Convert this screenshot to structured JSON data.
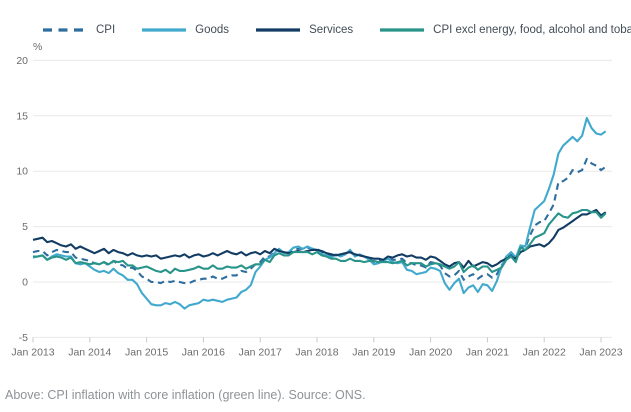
{
  "page": {
    "caption": "Above: CPI inflation with core inflation (green line). Source: ONS."
  },
  "chart_data": {
    "type": "line",
    "ylabel": "%",
    "ylim": [
      -5,
      20
    ],
    "y_ticks": [
      20,
      15,
      10,
      5,
      0,
      -5
    ],
    "x_ticks": [
      "Jan 2013",
      "Jan 2014",
      "Jan 2015",
      "Jan 2016",
      "Jan 2017",
      "Jan 2018",
      "Jan 2019",
      "Jan 2020",
      "Jan 2021",
      "Jan 2022",
      "Jan 2023"
    ],
    "x_start_month": "2013-01",
    "x_end_month": "2023-02",
    "grid": "horizontal",
    "legend_position": "top",
    "colors": {
      "grid": "#e8e8e8",
      "tick": "#c9c9c9",
      "axis_text": "#6b6b6b",
      "legend_text": "#414d56",
      "caption_text": "#8f9396"
    },
    "series": [
      {
        "name": "CPI",
        "color": "#2e6e9e",
        "dash": true,
        "values": [
          2.7,
          2.8,
          2.8,
          2.4,
          2.7,
          2.9,
          2.8,
          2.7,
          2.7,
          2.2,
          2.1,
          2.0,
          1.9,
          1.7,
          1.6,
          1.8,
          1.5,
          1.9,
          1.6,
          1.5,
          1.2,
          1.3,
          1.0,
          0.5,
          0.3,
          0.0,
          0.0,
          -0.1,
          0.1,
          0.0,
          0.1,
          0.0,
          -0.1,
          -0.1,
          0.1,
          0.2,
          0.3,
          0.3,
          0.5,
          0.3,
          0.3,
          0.5,
          0.6,
          0.6,
          1.0,
          0.9,
          1.2,
          1.6,
          1.8,
          2.3,
          2.3,
          2.7,
          2.9,
          2.6,
          2.6,
          2.9,
          3.0,
          3.0,
          3.1,
          3.0,
          3.0,
          2.7,
          2.5,
          2.4,
          2.4,
          2.4,
          2.5,
          2.7,
          2.4,
          2.4,
          2.3,
          2.1,
          1.8,
          1.9,
          1.9,
          2.1,
          2.0,
          2.0,
          2.1,
          1.7,
          1.7,
          1.5,
          1.5,
          1.3,
          1.8,
          1.7,
          1.5,
          0.8,
          0.5,
          0.6,
          1.0,
          0.2,
          0.5,
          0.7,
          0.3,
          0.6,
          0.7,
          0.4,
          0.7,
          1.5,
          2.1,
          2.5,
          2.0,
          3.2,
          3.1,
          4.2,
          5.1,
          5.4,
          5.5,
          6.2,
          7.0,
          9.0,
          9.1,
          9.4,
          10.1,
          9.9,
          10.1,
          11.1,
          10.7,
          10.5,
          10.1,
          10.4
        ]
      },
      {
        "name": "Goods",
        "color": "#41a9cd",
        "dash": false,
        "values": [
          2.2,
          2.3,
          2.4,
          2.0,
          2.3,
          2.5,
          2.4,
          2.3,
          2.3,
          1.7,
          1.6,
          1.7,
          1.4,
          1.1,
          0.9,
          1.0,
          0.8,
          1.2,
          0.8,
          0.6,
          0.2,
          0.2,
          -0.2,
          -1.0,
          -1.5,
          -2.0,
          -2.1,
          -2.1,
          -1.9,
          -2.0,
          -1.8,
          -2.0,
          -2.4,
          -2.1,
          -2.0,
          -1.9,
          -1.6,
          -1.7,
          -1.6,
          -1.7,
          -1.8,
          -1.6,
          -1.5,
          -1.4,
          -0.9,
          -0.7,
          -0.3,
          0.9,
          1.4,
          2.0,
          2.2,
          2.6,
          3.0,
          2.6,
          2.7,
          3.1,
          3.2,
          3.0,
          3.2,
          3.0,
          2.9,
          2.5,
          2.4,
          2.2,
          2.5,
          2.3,
          2.5,
          2.9,
          2.3,
          2.5,
          2.3,
          2.0,
          1.6,
          1.7,
          1.9,
          2.1,
          1.8,
          1.7,
          1.8,
          1.1,
          1.0,
          0.7,
          0.8,
          0.9,
          1.3,
          1.2,
          1.0,
          -0.1,
          -0.7,
          -0.1,
          0.3,
          -1.0,
          -0.5,
          -0.3,
          -0.9,
          -0.2,
          -0.3,
          -0.8,
          0.1,
          1.4,
          2.3,
          2.7,
          2.2,
          3.3,
          3.2,
          4.9,
          6.5,
          6.9,
          7.3,
          8.4,
          9.7,
          11.6,
          12.3,
          12.7,
          13.1,
          12.7,
          13.2,
          14.8,
          13.9,
          13.4,
          13.3,
          13.6
        ]
      },
      {
        "name": "Services",
        "color": "#123c63",
        "dash": false,
        "values": [
          3.8,
          3.9,
          4.0,
          3.6,
          3.7,
          3.5,
          3.3,
          3.2,
          3.4,
          3.0,
          3.2,
          3.0,
          2.8,
          2.6,
          2.8,
          3.0,
          2.6,
          2.9,
          2.7,
          2.6,
          2.4,
          2.6,
          2.4,
          2.3,
          2.4,
          2.3,
          2.4,
          2.1,
          2.2,
          2.3,
          2.4,
          2.3,
          2.5,
          2.2,
          2.4,
          2.5,
          2.3,
          2.4,
          2.6,
          2.4,
          2.6,
          2.8,
          2.6,
          2.5,
          2.7,
          2.4,
          2.6,
          2.7,
          2.5,
          2.8,
          2.6,
          3.0,
          2.8,
          2.7,
          2.6,
          2.7,
          2.8,
          2.7,
          2.8,
          2.9,
          2.9,
          2.8,
          2.6,
          2.5,
          2.4,
          2.5,
          2.6,
          2.7,
          2.5,
          2.4,
          2.3,
          2.2,
          2.1,
          2.1,
          2.0,
          2.3,
          2.2,
          2.4,
          2.5,
          2.3,
          2.4,
          2.2,
          2.2,
          2.0,
          2.3,
          2.2,
          1.9,
          1.6,
          1.4,
          1.7,
          1.8,
          1.3,
          1.9,
          1.4,
          1.6,
          1.8,
          1.7,
          1.4,
          1.6,
          1.9,
          2.1,
          2.3,
          2.1,
          2.7,
          2.9,
          3.2,
          3.3,
          3.4,
          3.2,
          3.5,
          4.0,
          4.7,
          4.9,
          5.2,
          5.5,
          5.8,
          6.1,
          6.1,
          6.3,
          6.5,
          6.0,
          6.3
        ]
      },
      {
        "name": "CPI excl energy, food, alcohol and tobacco",
        "color": "#28948a",
        "dash": false,
        "values": [
          2.3,
          2.3,
          2.4,
          2.0,
          2.2,
          2.3,
          2.2,
          2.0,
          2.2,
          1.7,
          1.8,
          1.7,
          1.6,
          1.7,
          1.6,
          1.8,
          1.6,
          1.9,
          1.8,
          1.9,
          1.5,
          1.5,
          1.2,
          1.3,
          1.4,
          1.2,
          1.0,
          0.9,
          1.1,
          0.8,
          1.2,
          1.0,
          1.0,
          1.1,
          1.2,
          1.4,
          1.2,
          1.2,
          1.5,
          1.2,
          1.2,
          1.4,
          1.3,
          1.3,
          1.5,
          1.2,
          1.4,
          1.6,
          1.6,
          2.0,
          1.8,
          2.4,
          2.6,
          2.4,
          2.4,
          2.7,
          2.7,
          2.7,
          2.7,
          2.5,
          2.7,
          2.4,
          2.3,
          2.1,
          2.1,
          1.9,
          1.9,
          2.1,
          1.9,
          1.9,
          1.8,
          1.9,
          1.9,
          1.8,
          1.8,
          1.8,
          1.7,
          1.8,
          1.9,
          1.5,
          1.7,
          1.7,
          1.7,
          1.4,
          1.6,
          1.7,
          1.6,
          1.4,
          1.2,
          1.4,
          1.8,
          0.9,
          1.3,
          1.5,
          1.1,
          1.4,
          1.4,
          0.9,
          1.1,
          1.3,
          2.0,
          2.3,
          1.8,
          3.1,
          2.9,
          3.4,
          4.0,
          4.2,
          4.4,
          5.2,
          5.7,
          6.2,
          5.9,
          5.8,
          6.2,
          6.3,
          6.5,
          6.5,
          6.3,
          6.3,
          5.8,
          6.2
        ]
      }
    ]
  }
}
